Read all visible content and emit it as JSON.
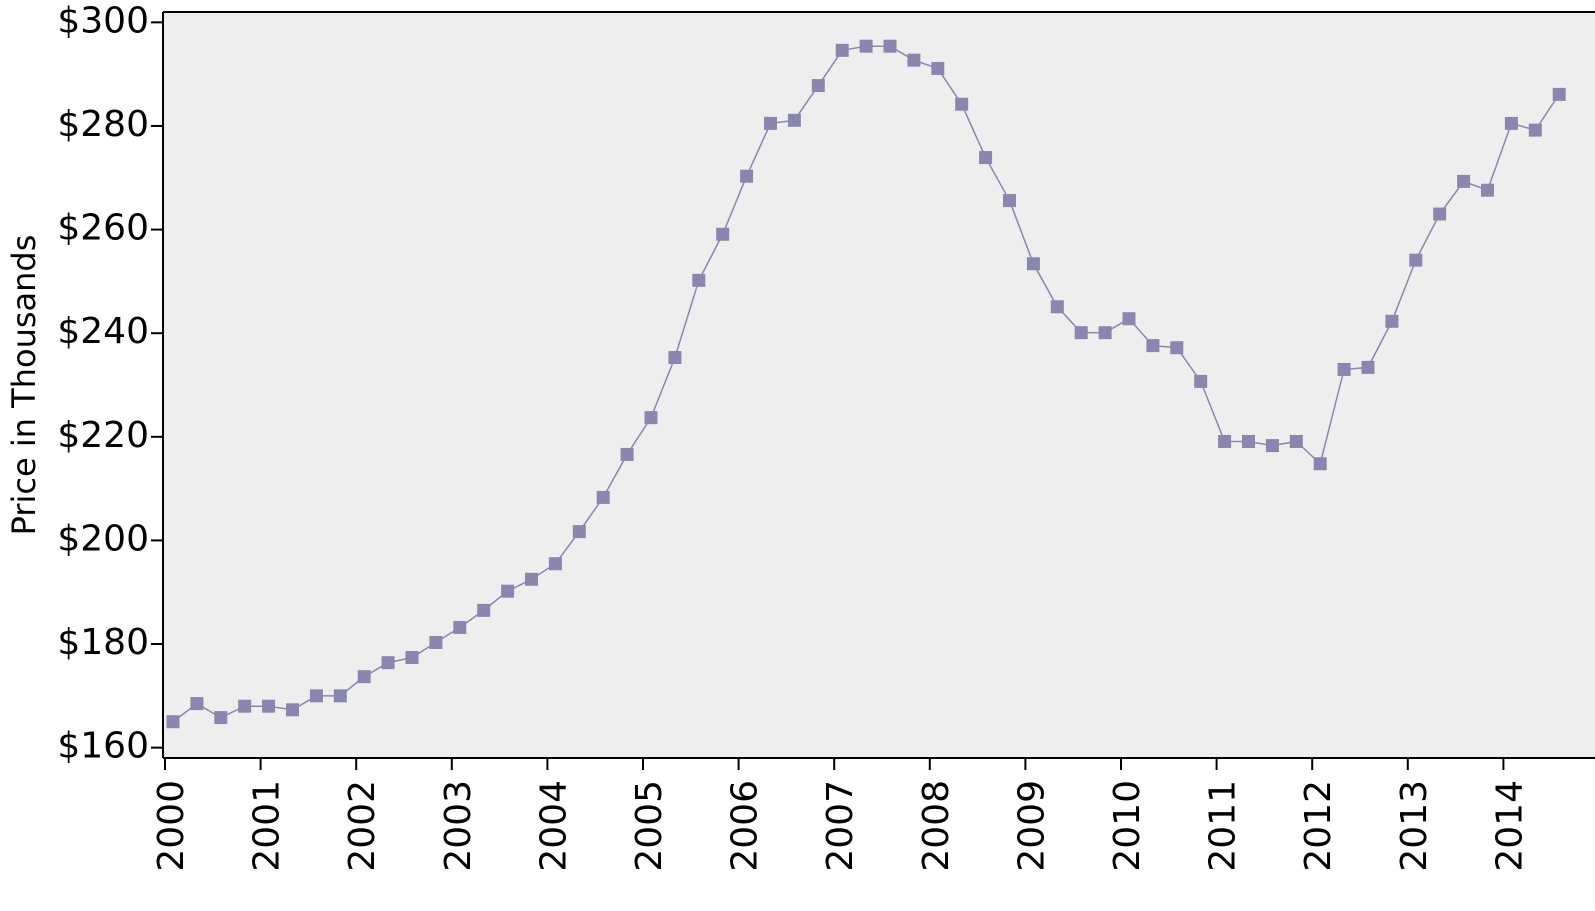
{
  "chart_data": {
    "type": "line",
    "y_label": "Price in Thousands",
    "categories": [
      "2000",
      null,
      null,
      null,
      "2001",
      null,
      null,
      null,
      "2002",
      null,
      null,
      null,
      "2003",
      null,
      null,
      null,
      "2004",
      null,
      null,
      null,
      "2005",
      null,
      null,
      null,
      "2006",
      null,
      null,
      null,
      "2007",
      null,
      null,
      null,
      "2008",
      null,
      null,
      null,
      "2009",
      null,
      null,
      null,
      "2010",
      null,
      null,
      null,
      "2011",
      null,
      null,
      null,
      "2012",
      null,
      null,
      null,
      "2013",
      null,
      null,
      null,
      "2014",
      null,
      null
    ],
    "series": [
      {
        "color": "#8a86ad",
        "values": [
          165,
          168.5,
          165.8,
          168,
          168,
          167.3,
          170,
          170,
          173.7,
          176.4,
          177.4,
          180.3,
          183.2,
          186.5,
          190.2,
          192.5,
          195.5,
          201.7,
          208.3,
          216.6,
          223.7,
          235.3,
          250.2,
          259.1,
          270.3,
          280.5,
          281.1,
          287.8,
          294.6,
          295.4,
          295.4,
          292.7,
          291.1,
          284.2,
          273.9,
          265.6,
          253.4,
          245.1,
          240.1,
          240.1,
          242.8,
          237.6,
          237.2,
          230.7,
          219.1,
          219.1,
          218.3,
          219.1,
          214.8,
          233,
          233.4,
          242.3,
          254.1,
          263,
          269.3,
          267.6,
          280.5,
          279.2,
          286.1
        ]
      }
    ],
    "ylim": [
      158,
      302
    ],
    "yticks": [
      {
        "value": 160,
        "label": "$160"
      },
      {
        "value": 180,
        "label": "$180"
      },
      {
        "value": 200,
        "label": "$200"
      },
      {
        "value": 220,
        "label": "$220"
      },
      {
        "value": 240,
        "label": "$240"
      },
      {
        "value": 260,
        "label": "$260"
      },
      {
        "value": 280,
        "label": "$280"
      },
      {
        "value": 300,
        "label": "$300"
      }
    ]
  }
}
